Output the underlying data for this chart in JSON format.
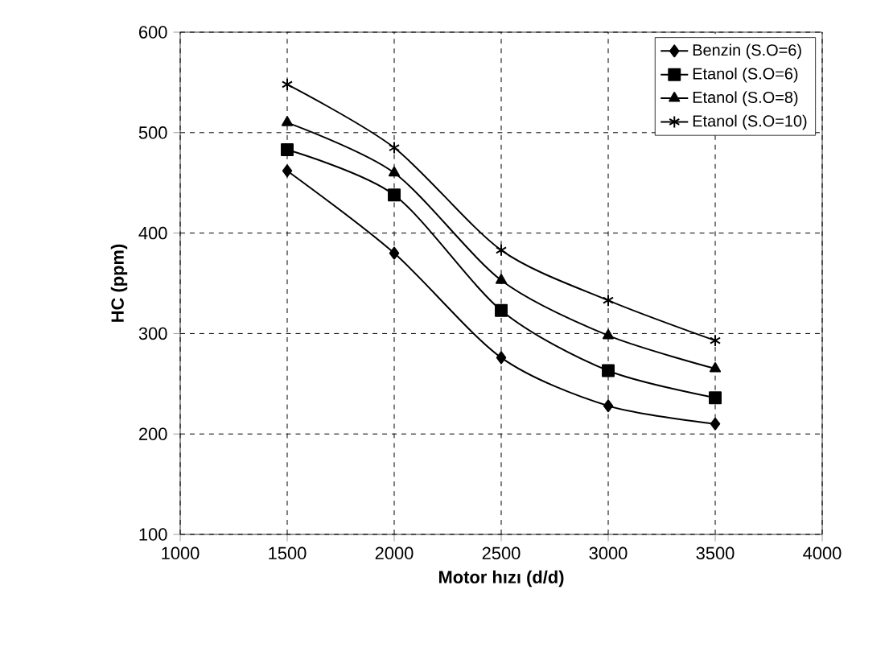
{
  "chart_data": {
    "type": "line",
    "xlabel": "Motor hızı (d/d)",
    "ylabel": "HC (ppm)",
    "x": [
      1500,
      2000,
      2500,
      3000,
      3500
    ],
    "series": [
      {
        "name": "Benzin (S.O=6)",
        "color": "#000000",
        "marker": "diamond",
        "values": [
          462,
          380,
          276,
          228,
          210
        ]
      },
      {
        "name": "Etanol (S.O=6)",
        "color": "#000000",
        "marker": "square",
        "values": [
          483,
          438,
          323,
          263,
          236
        ]
      },
      {
        "name": "Etanol (S.O=8)",
        "color": "#000000",
        "marker": "triangle",
        "values": [
          510,
          460,
          353,
          298,
          265
        ]
      },
      {
        "name": "Etanol (S.O=10)",
        "color": "#000000",
        "marker": "cross",
        "values": [
          548,
          485,
          383,
          333,
          293
        ]
      }
    ],
    "xlim": [
      1000,
      4000
    ],
    "xticks": [
      1000,
      1500,
      2000,
      2500,
      3000,
      3500,
      4000
    ],
    "ylim": [
      100,
      600
    ],
    "yticks": [
      100,
      200,
      300,
      400,
      500,
      600
    ],
    "grid": true,
    "legend": "top right",
    "line_style": "solid"
  }
}
